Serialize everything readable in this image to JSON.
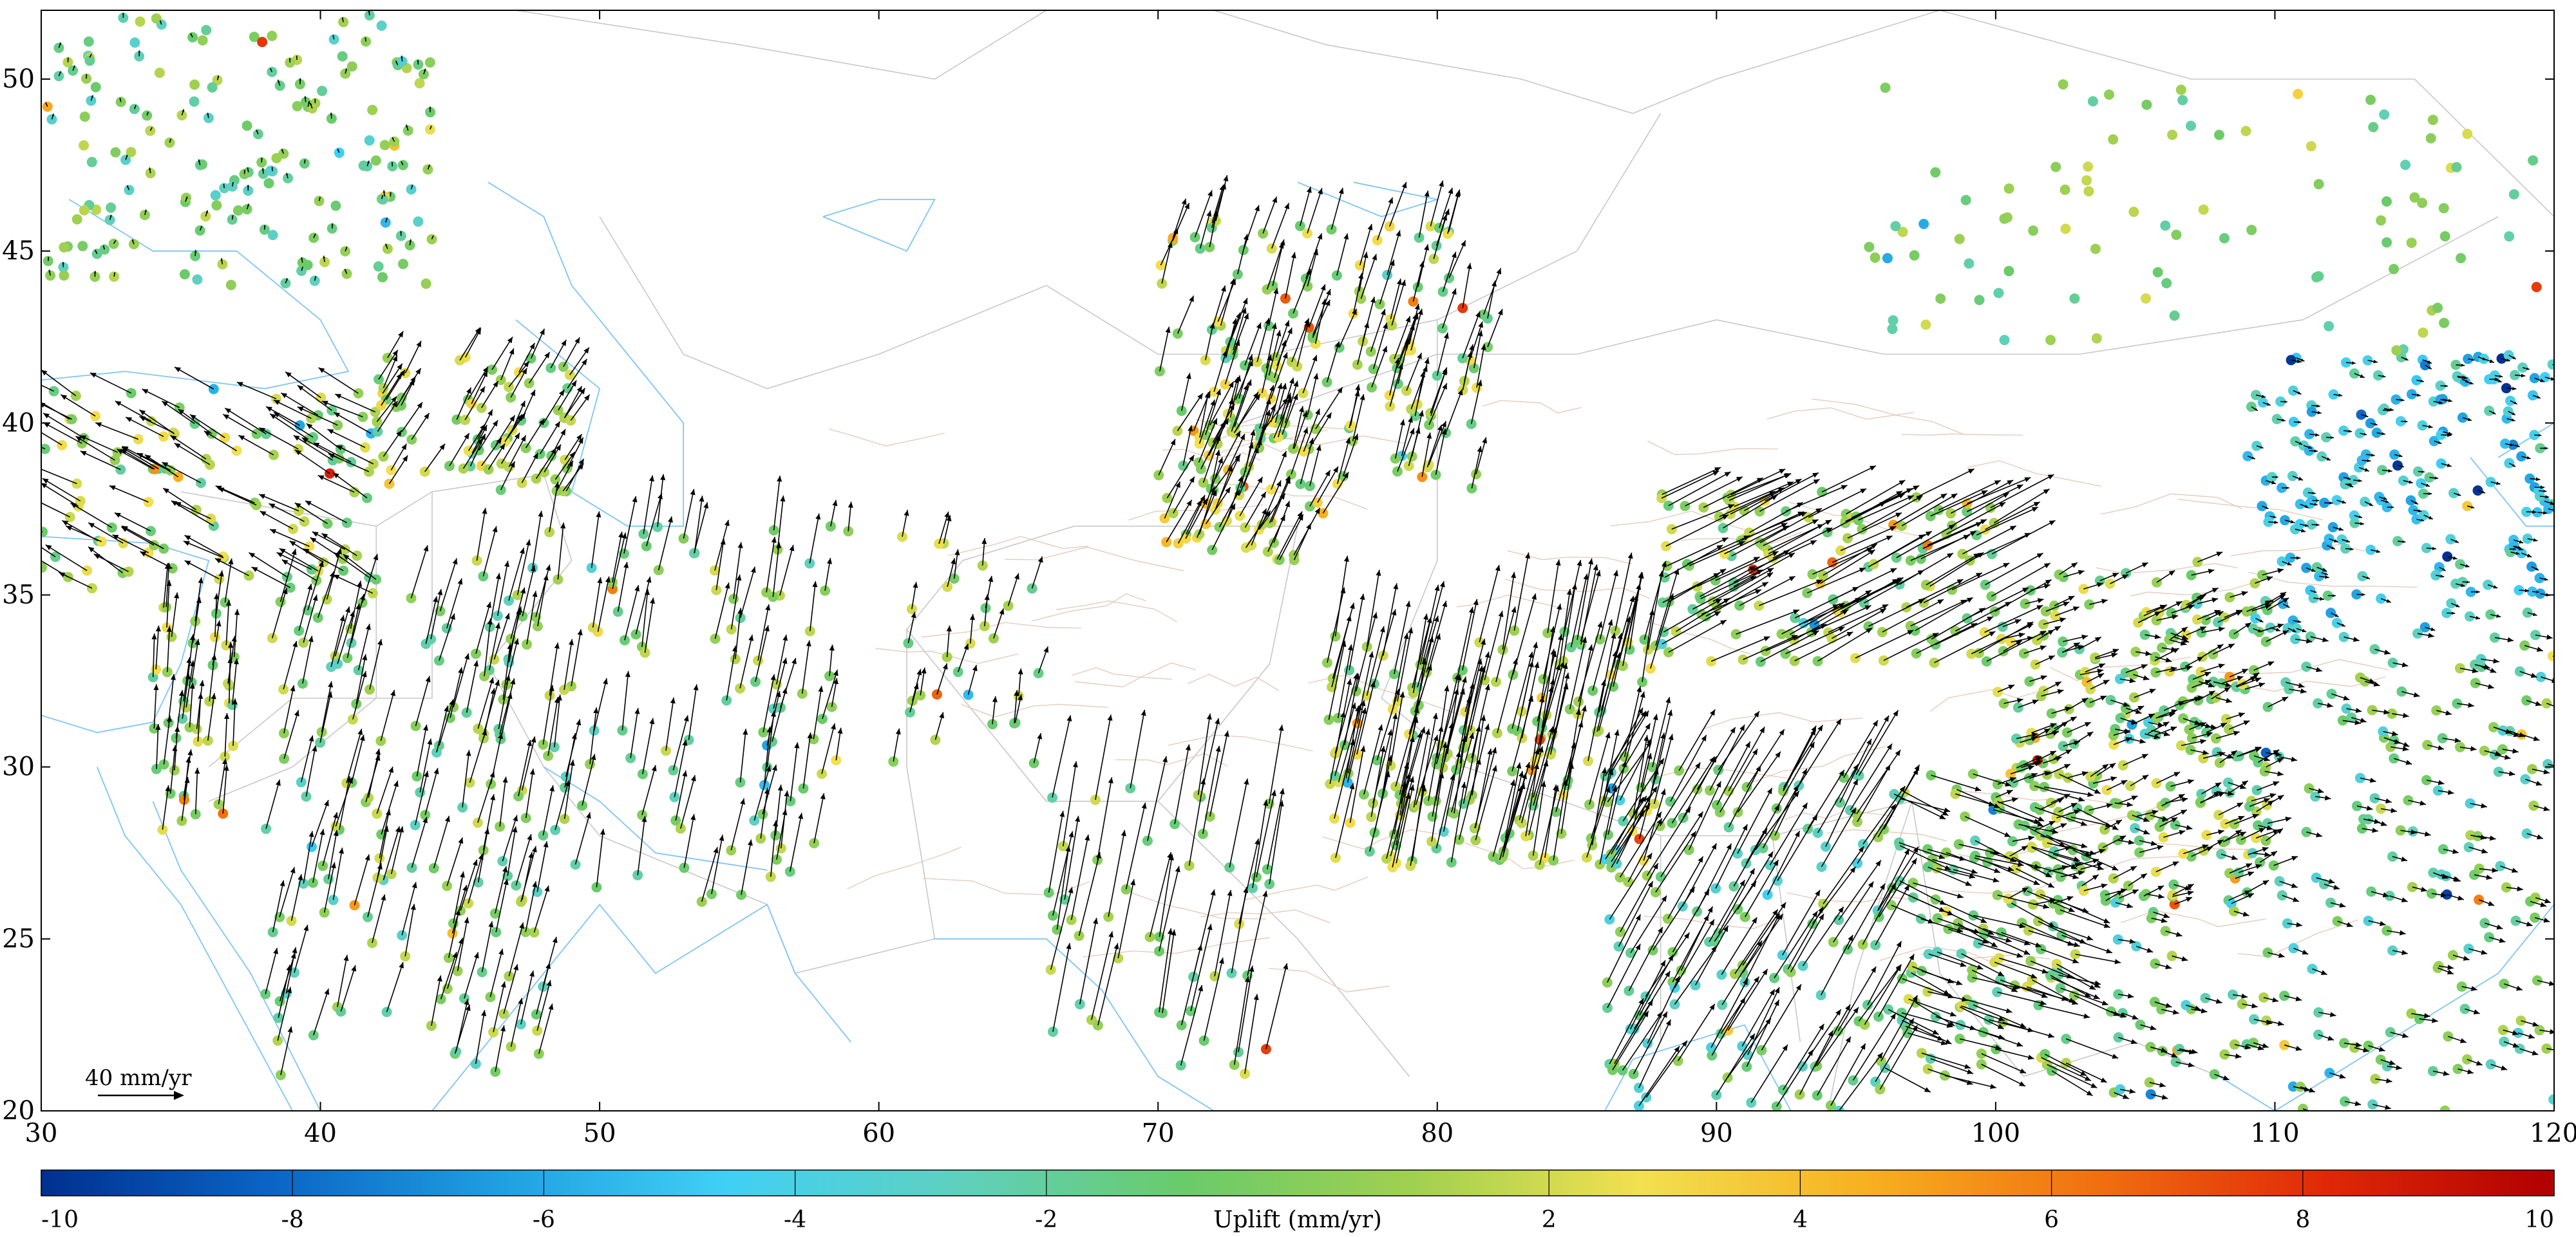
{
  "map": {
    "lon_range": [
      30,
      120
    ],
    "lat_range": [
      20,
      52
    ],
    "lon_ticks": [
      30,
      40,
      50,
      60,
      70,
      80,
      90,
      100,
      110,
      120
    ],
    "lat_ticks": [
      20,
      25,
      30,
      35,
      40,
      45,
      50
    ],
    "lon_tick_labels": [
      "30",
      "40",
      "50",
      "60",
      "70",
      "80",
      "90",
      "100",
      "110",
      "120"
    ],
    "lat_tick_labels": [
      "20",
      "25",
      "30",
      "35",
      "40",
      "45",
      "50"
    ],
    "scale_label": "40 mm/yr",
    "scale_mm_per_yr": 40
  },
  "colorbar": {
    "title": "Uplift (mm/yr)",
    "range": [
      -10,
      10
    ],
    "ticks": [
      -10,
      -8,
      -6,
      -4,
      -2,
      2,
      4,
      6,
      8,
      10
    ],
    "tick_labels": [
      "-10",
      "-8",
      "-6",
      "-4",
      "-2",
      "2",
      "4",
      "6",
      "8",
      "10"
    ],
    "colors": [
      "#00308f",
      "#0b64c4",
      "#1f9fe0",
      "#40d0f5",
      "#5fd0c0",
      "#6acb6a",
      "#a0d050",
      "#f2e050",
      "#f7b020",
      "#f07010",
      "#e02808",
      "#b00000"
    ]
  },
  "colors": {
    "coastline": "#7fc6f2",
    "borders": "#c8c8c8",
    "faults": "#e4c8b8",
    "arrows": "#000000"
  }
}
